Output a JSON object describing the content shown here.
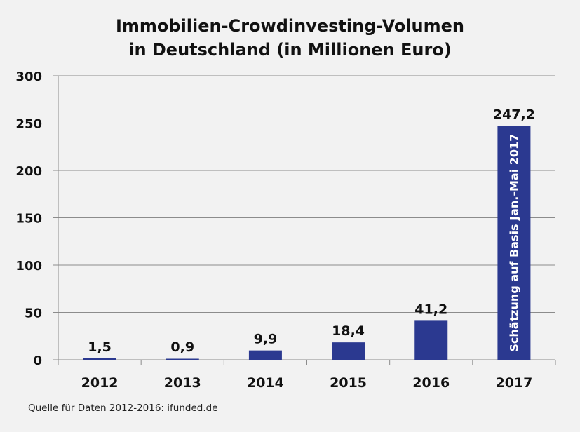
{
  "chart_data": {
    "type": "bar",
    "title_line1": "Immobilien-Crowdinvesting-Volumen",
    "title_line2": "in Deutschland (in Millionen Euro)",
    "categories": [
      "2012",
      "2013",
      "2014",
      "2015",
      "2016",
      "2017"
    ],
    "values": [
      1.5,
      0.9,
      9.9,
      18.4,
      41.2,
      247.2
    ],
    "value_labels": [
      "1,5",
      "0,9",
      "9,9",
      "18,4",
      "41,2",
      "247,2"
    ],
    "yticks": [
      0,
      50,
      100,
      150,
      200,
      250,
      300
    ],
    "ylim": [
      0,
      300
    ],
    "grid": true,
    "bar_color": "#2b3990",
    "annotation": "Schätzung auf Basis Jan.-Mai 2017"
  },
  "source_note": "Quelle für Daten 2012-2016: ifunded.de"
}
